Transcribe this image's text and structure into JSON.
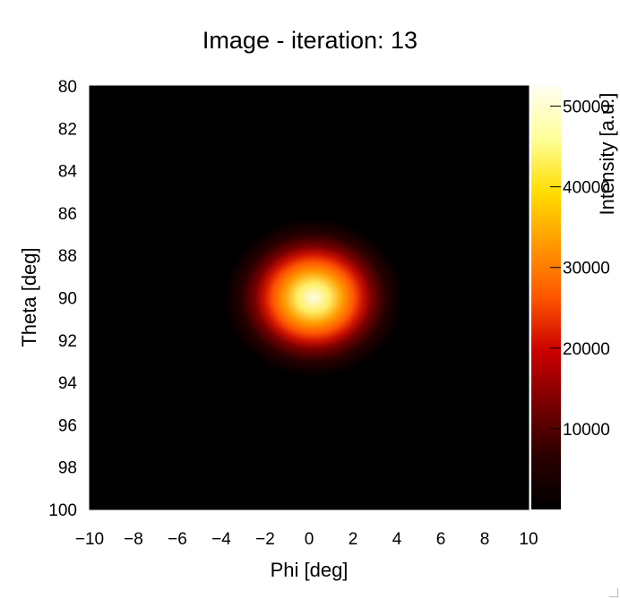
{
  "chart_data": {
    "type": "heatmap",
    "title": "Image - iteration: 13",
    "xlabel": "Phi [deg]",
    "ylabel": "Theta [deg]",
    "xlim": [
      -10,
      10
    ],
    "ylim": [
      100,
      80
    ],
    "x_ticks": [
      -10,
      -8,
      -6,
      -4,
      -2,
      0,
      2,
      4,
      6,
      8,
      10
    ],
    "x_tick_labels": [
      "−10",
      "−8",
      "−6",
      "−4",
      "−2",
      "0",
      "2",
      "4",
      "6",
      "8",
      "10"
    ],
    "y_ticks": [
      80,
      82,
      84,
      86,
      88,
      90,
      92,
      94,
      96,
      98,
      100
    ],
    "y_tick_labels": [
      "80",
      "82",
      "84",
      "86",
      "88",
      "90",
      "92",
      "94",
      "96",
      "98",
      "100"
    ],
    "colorbar": {
      "label": "Intensity [a.u.]",
      "range": [
        0,
        52500
      ],
      "ticks": [
        10000,
        20000,
        30000,
        40000,
        50000
      ],
      "tick_labels": [
        "10000",
        "20000",
        "30000",
        "40000",
        "50000"
      ],
      "colormap": "hot",
      "color_stops": [
        "#000000",
        "#2a0000",
        "#7a0000",
        "#cc0000",
        "#ff5500",
        "#ff9900",
        "#ffdd00",
        "#ffff99",
        "#fffdf0"
      ]
    },
    "peak": {
      "phi": 0.2,
      "theta": 90.0,
      "intensity": 52000
    },
    "spot_sigma_deg": {
      "phi": 1.2,
      "theta": 1.1
    }
  }
}
